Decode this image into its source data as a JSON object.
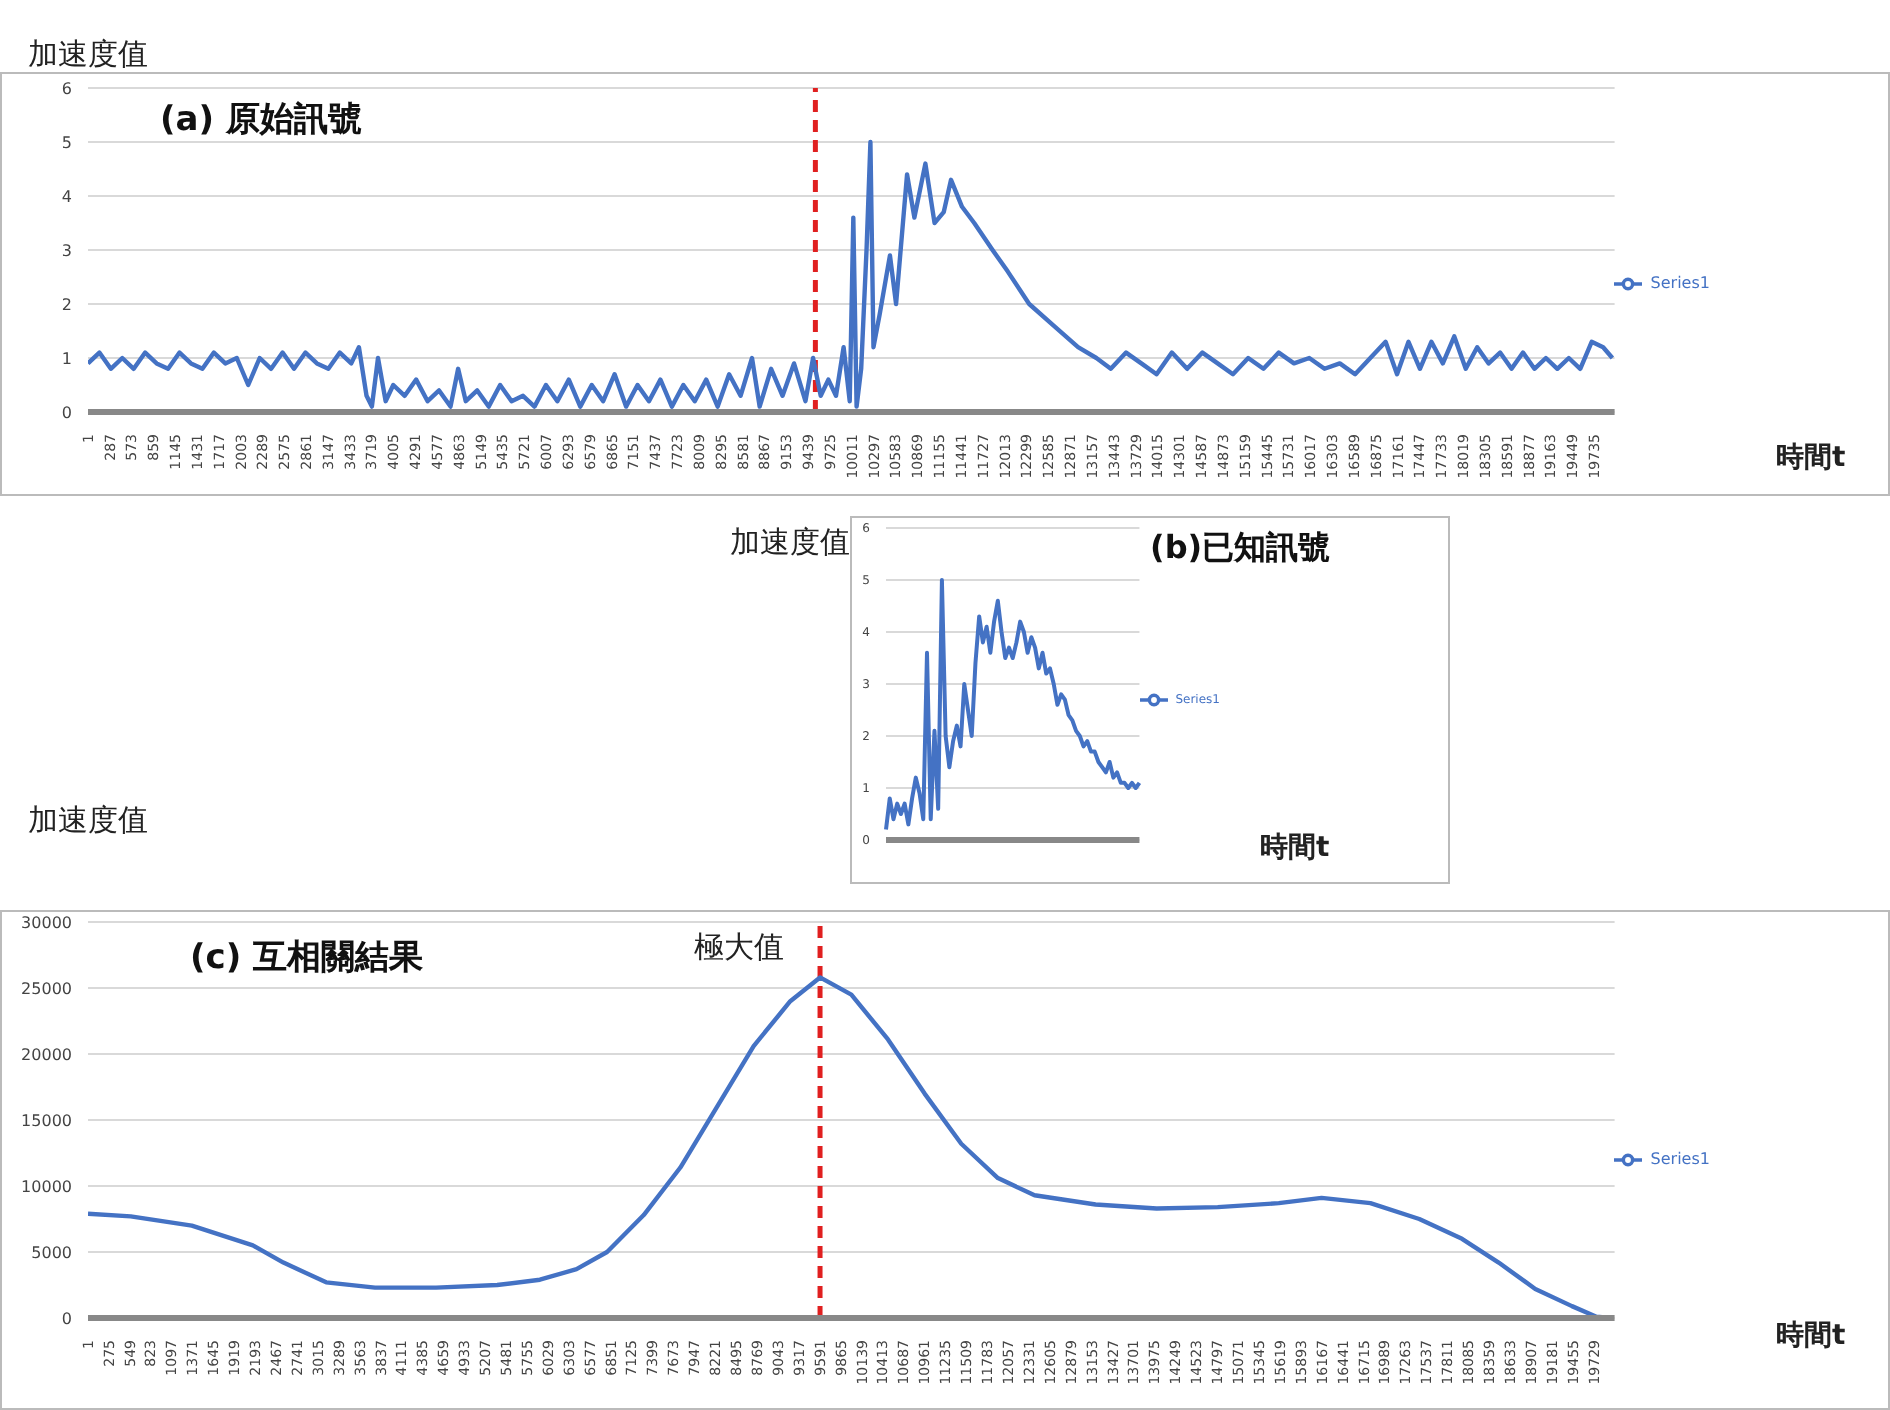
{
  "chart_data": [
    {
      "type": "line",
      "title": "(a) 原始訊號",
      "xlabel": "時間t",
      "ylabel": "加速度值",
      "xlim": [
        1,
        20000
      ],
      "ylim": [
        0,
        6
      ],
      "yticks": [
        0,
        1,
        2,
        3,
        4,
        5,
        6
      ],
      "xticks": [
        1,
        287,
        573,
        859,
        1145,
        1431,
        1717,
        2003,
        2289,
        2575,
        2861,
        3147,
        3433,
        3719,
        4005,
        4291,
        4577,
        4863,
        5149,
        5435,
        5721,
        6007,
        6293,
        6579,
        6865,
        7151,
        7437,
        7723,
        8009,
        8295,
        8581,
        8867,
        9153,
        9439,
        9725,
        10011,
        10297,
        10583,
        10869,
        11155,
        11441,
        11727,
        12013,
        12299,
        12585,
        12871,
        13157,
        13443,
        13729,
        14015,
        14301,
        14587,
        14873,
        15159,
        15445,
        15731,
        16017,
        16303,
        16589,
        16875,
        17161,
        17447,
        17733,
        18019,
        18305,
        18591,
        18877,
        19163,
        19449,
        19735
      ],
      "x": [
        1,
        150,
        300,
        450,
        600,
        750,
        900,
        1050,
        1200,
        1350,
        1500,
        1650,
        1800,
        1950,
        2100,
        2250,
        2400,
        2550,
        2700,
        2850,
        3000,
        3150,
        3300,
        3450,
        3550,
        3650,
        3720,
        3800,
        3900,
        4000,
        4150,
        4300,
        4450,
        4600,
        4750,
        4850,
        4950,
        5100,
        5250,
        5400,
        5550,
        5700,
        5850,
        6000,
        6150,
        6300,
        6450,
        6600,
        6750,
        6900,
        7050,
        7200,
        7350,
        7500,
        7650,
        7800,
        7950,
        8100,
        8250,
        8400,
        8550,
        8700,
        8800,
        8950,
        9100,
        9250,
        9400,
        9500,
        9600,
        9700,
        9800,
        9900,
        9980,
        10027,
        10070,
        10130,
        10200,
        10251,
        10291,
        10371,
        10507,
        10587,
        10731,
        10827,
        10971,
        11091,
        11211,
        11307,
        11451,
        11611,
        11851,
        12051,
        12331,
        12651,
        12971,
        13211,
        13400,
        13600,
        13800,
        14000,
        14200,
        14400,
        14600,
        14800,
        15000,
        15200,
        15400,
        15600,
        15800,
        16000,
        16200,
        16400,
        16600,
        16800,
        17000,
        17150,
        17300,
        17450,
        17600,
        17750,
        17900,
        18050,
        18200,
        18350,
        18500,
        18650,
        18800,
        18950,
        19100,
        19250,
        19400,
        19550,
        19700,
        19850,
        19971
      ],
      "series": [
        {
          "name": "Series1",
          "color": "#4472c4",
          "values": [
            0.9,
            1.1,
            0.8,
            1.0,
            0.8,
            1.1,
            0.9,
            0.8,
            1.1,
            0.9,
            0.8,
            1.1,
            0.9,
            1.0,
            0.5,
            1.0,
            0.8,
            1.1,
            0.8,
            1.1,
            0.9,
            0.8,
            1.1,
            0.9,
            1.2,
            0.3,
            0.1,
            1.0,
            0.2,
            0.5,
            0.3,
            0.6,
            0.2,
            0.4,
            0.1,
            0.8,
            0.2,
            0.4,
            0.1,
            0.5,
            0.2,
            0.3,
            0.1,
            0.5,
            0.2,
            0.6,
            0.1,
            0.5,
            0.2,
            0.7,
            0.1,
            0.5,
            0.2,
            0.6,
            0.1,
            0.5,
            0.2,
            0.6,
            0.1,
            0.7,
            0.3,
            1.0,
            0.1,
            0.8,
            0.3,
            0.9,
            0.2,
            1.0,
            0.3,
            0.6,
            0.3,
            1.2,
            0.2,
            3.6,
            0.1,
            0.8,
            3.0,
            5.0,
            1.2,
            1.8,
            2.9,
            2.0,
            4.4,
            3.6,
            4.6,
            3.5,
            3.7,
            4.3,
            3.8,
            3.5,
            3.0,
            2.6,
            2.0,
            1.6,
            1.2,
            1.0,
            0.8,
            1.1,
            0.9,
            0.7,
            1.1,
            0.8,
            1.1,
            0.9,
            0.7,
            1.0,
            0.8,
            1.1,
            0.9,
            1.0,
            0.8,
            0.9,
            0.7,
            1.0,
            1.3,
            0.7,
            1.3,
            0.8,
            1.3,
            0.9,
            1.4,
            0.8,
            1.2,
            0.9,
            1.1,
            0.8,
            1.1,
            0.8,
            1.0,
            0.8,
            1.0,
            0.8,
            1.3,
            1.2,
            1.0
          ]
        }
      ],
      "ref_lines": [
        {
          "axis": "x",
          "value": 9530,
          "color": "#e02020",
          "line_style": "dashed"
        }
      ],
      "grid": "y",
      "legend": "right"
    },
    {
      "type": "line",
      "title": "(b)已知訊號",
      "xlabel": "時間t",
      "ylabel": "加速度值",
      "ylim": [
        0,
        6
      ],
      "yticks": [
        0,
        1,
        2,
        3,
        4,
        5,
        6
      ],
      "categories": [
        null,
        null,
        null,
        null,
        null,
        null,
        null,
        null,
        null,
        null,
        null,
        null,
        null,
        null,
        null,
        null,
        null,
        null,
        null,
        null,
        null,
        null,
        null,
        null,
        null,
        null,
        null,
        null,
        null,
        null,
        null,
        null,
        null,
        null,
        null,
        null,
        null,
        null,
        null,
        null,
        null,
        null,
        null,
        null,
        null,
        null,
        null,
        null,
        null,
        null,
        null,
        null,
        null,
        null,
        null,
        null,
        null,
        null,
        null,
        null,
        null,
        null,
        null,
        null,
        null,
        null,
        null,
        null,
        null
      ],
      "series": [
        {
          "name": "Series1",
          "color": "#4472c4",
          "values": [
            0.2,
            0.8,
            0.4,
            0.7,
            0.5,
            0.7,
            0.3,
            0.8,
            1.2,
            0.9,
            0.4,
            3.6,
            0.4,
            2.1,
            0.6,
            5.0,
            2.0,
            1.4,
            1.9,
            2.2,
            1.8,
            3.0,
            2.5,
            2.0,
            3.4,
            4.3,
            3.8,
            4.1,
            3.6,
            4.2,
            4.6,
            4.0,
            3.5,
            3.7,
            3.5,
            3.8,
            4.2,
            4.0,
            3.6,
            3.9,
            3.7,
            3.3,
            3.6,
            3.2,
            3.3,
            3.0,
            2.6,
            2.8,
            2.7,
            2.4,
            2.3,
            2.1,
            2.0,
            1.8,
            1.9,
            1.7,
            1.7,
            1.5,
            1.4,
            1.3,
            1.5,
            1.2,
            1.3,
            1.1,
            1.1,
            1.0,
            1.1,
            1.0,
            1.1
          ]
        }
      ],
      "grid": "y",
      "legend": "right"
    },
    {
      "type": "line",
      "title": "(c) 互相關結果",
      "xlabel": "時間t",
      "ylabel": "加速度值",
      "xlim": [
        1,
        20000
      ],
      "ylim": [
        0,
        30000
      ],
      "yticks": [
        0,
        5000,
        10000,
        15000,
        20000,
        25000,
        30000
      ],
      "xticks": [
        1,
        275,
        549,
        823,
        1097,
        1371,
        1645,
        1919,
        2193,
        2467,
        2741,
        3015,
        3289,
        3563,
        3837,
        4111,
        4385,
        4659,
        4933,
        5207,
        5481,
        5755,
        6029,
        6303,
        6577,
        6851,
        7125,
        7399,
        7673,
        7947,
        8221,
        8495,
        8769,
        9043,
        9317,
        9591,
        9865,
        10139,
        10413,
        10687,
        10961,
        11235,
        11509,
        11783,
        12057,
        12331,
        12605,
        12879,
        13153,
        13427,
        13701,
        13975,
        14249,
        14523,
        14797,
        15071,
        15345,
        15619,
        15893,
        16167,
        16441,
        16715,
        16989,
        17263,
        17537,
        17811,
        18085,
        18359,
        18633,
        18907,
        19181,
        19455,
        19729
      ],
      "x": [
        1,
        561,
        1361,
        2161,
        2561,
        3121,
        3761,
        4561,
        5361,
        5921,
        6401,
        6801,
        7281,
        7761,
        8241,
        8721,
        9201,
        9591,
        10001,
        10481,
        10961,
        11441,
        11921,
        12401,
        13201,
        14001,
        14801,
        15601,
        16161,
        16801,
        17441,
        18001,
        18481,
        18961,
        19441,
        19761,
        19950
      ],
      "series": [
        {
          "name": "Series1",
          "color": "#4472c4",
          "values": [
            7900,
            7700,
            7000,
            5500,
            4200,
            2700,
            2300,
            2300,
            2500,
            2900,
            3700,
            5000,
            7800,
            11400,
            16000,
            20600,
            24000,
            25800,
            24500,
            21100,
            17000,
            13200,
            10600,
            9300,
            8600,
            8300,
            8400,
            8700,
            9100,
            8700,
            7500,
            6000,
            4200,
            2200,
            900,
            100,
            0
          ]
        }
      ],
      "ref_lines": [
        {
          "axis": "x",
          "value": 9591,
          "color": "#e02020",
          "line_style": "dashed"
        }
      ],
      "annotations": [
        {
          "text": "極大值",
          "x": 9591,
          "y": 25800
        }
      ],
      "grid": "y",
      "legend": "right"
    }
  ]
}
